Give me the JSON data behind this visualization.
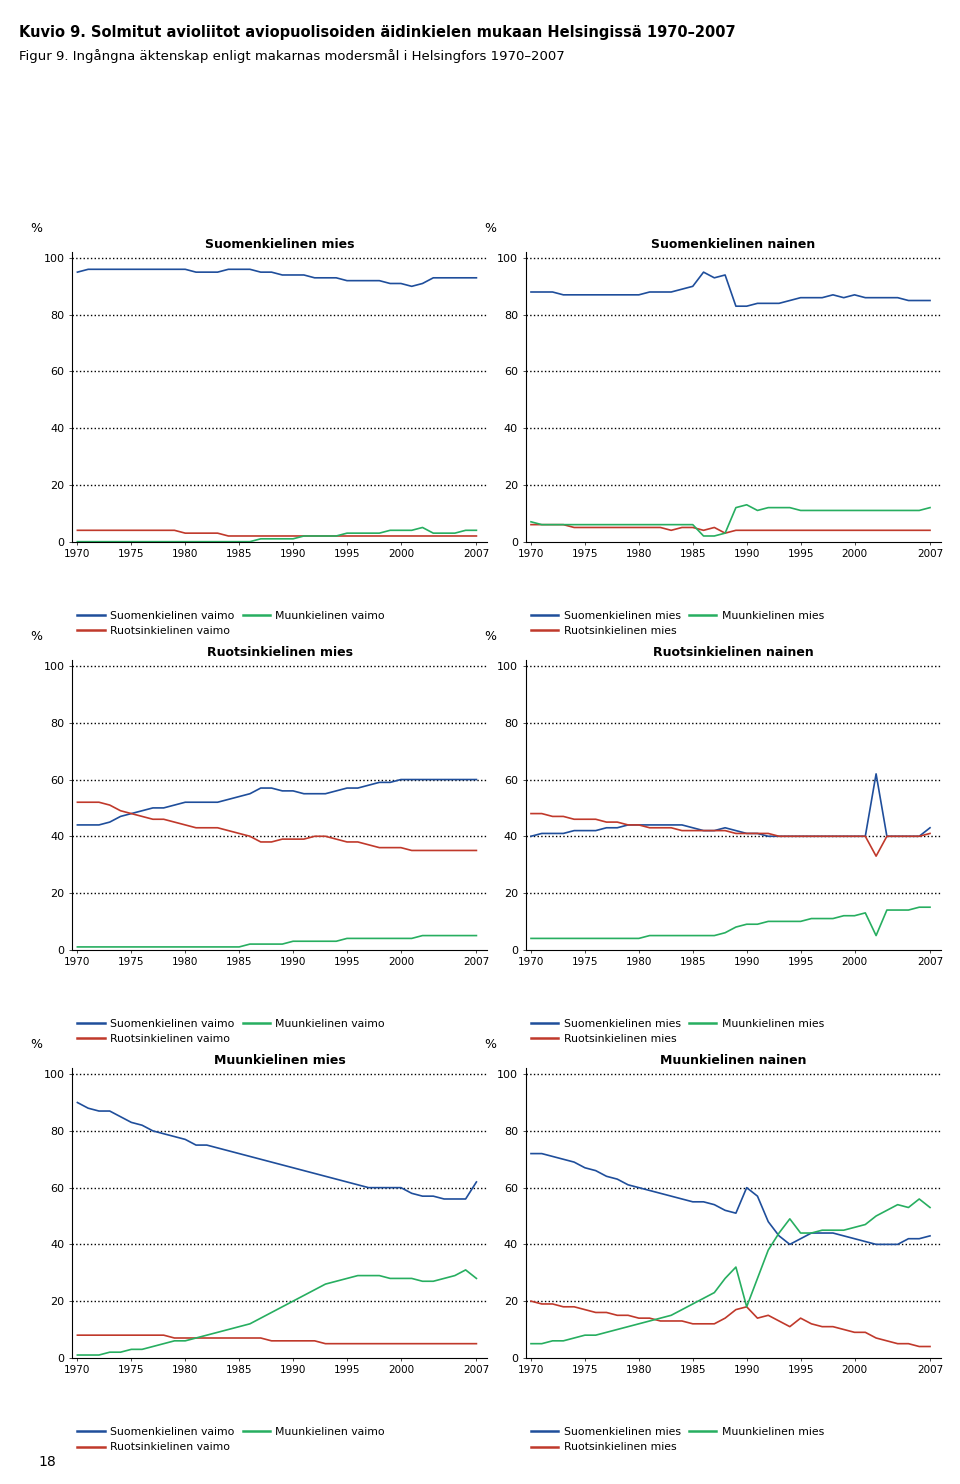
{
  "title_line1": "Kuvio 9. Solmitut avioliitot aviopuolisoiden äidinkielen mukaan Helsingissä 1970–2007",
  "title_line2": "Figur 9. Ingångna äktenskap enligt makarnas modersmål i Helsingfors 1970–2007",
  "years": [
    1970,
    1971,
    1972,
    1973,
    1974,
    1975,
    1976,
    1977,
    1978,
    1979,
    1980,
    1981,
    1982,
    1983,
    1984,
    1985,
    1986,
    1987,
    1988,
    1989,
    1990,
    1991,
    1992,
    1993,
    1994,
    1995,
    1996,
    1997,
    1998,
    1999,
    2000,
    2001,
    2002,
    2003,
    2004,
    2005,
    2006,
    2007
  ],
  "subplot_titles": [
    "Suomenkielinen mies",
    "Suomenkielinen nainen",
    "Ruotsinkielinen mies",
    "Ruotsinkielinen nainen",
    "Muunkielinen mies",
    "Muunkielinen nainen"
  ],
  "colors": {
    "blue": "#1f4e9b",
    "red": "#c0392b",
    "green": "#27ae60"
  },
  "left_legend_labels": [
    "Suomenkielinen vaimo",
    "Ruotsinkielinen vaimo",
    "Muunkielinen vaimo"
  ],
  "right_legend_labels": [
    "Suomenkielinen mies",
    "Ruotsinkielinen mies",
    "Muunkielinen mies"
  ],
  "data": {
    "suomenkielinen_mies": {
      "blue": [
        95,
        96,
        96,
        96,
        96,
        96,
        96,
        96,
        96,
        96,
        96,
        95,
        95,
        95,
        96,
        96,
        96,
        95,
        95,
        94,
        94,
        94,
        93,
        93,
        93,
        92,
        92,
        92,
        92,
        91,
        91,
        90,
        91,
        93,
        93,
        93,
        93,
        93
      ],
      "red": [
        4,
        4,
        4,
        4,
        4,
        4,
        4,
        4,
        4,
        4,
        3,
        3,
        3,
        3,
        2,
        2,
        2,
        2,
        2,
        2,
        2,
        2,
        2,
        2,
        2,
        2,
        2,
        2,
        2,
        2,
        2,
        2,
        2,
        2,
        2,
        2,
        2,
        2
      ],
      "green": [
        0,
        0,
        0,
        0,
        0,
        0,
        0,
        0,
        0,
        0,
        0,
        0,
        0,
        0,
        0,
        0,
        0,
        1,
        1,
        1,
        1,
        2,
        2,
        2,
        2,
        3,
        3,
        3,
        3,
        4,
        4,
        4,
        5,
        3,
        3,
        3,
        4,
        4
      ]
    },
    "suomenkielinen_nainen": {
      "blue": [
        88,
        88,
        88,
        87,
        87,
        87,
        87,
        87,
        87,
        87,
        87,
        88,
        88,
        88,
        89,
        90,
        95,
        93,
        94,
        83,
        83,
        84,
        84,
        84,
        85,
        86,
        86,
        86,
        87,
        86,
        87,
        86,
        86,
        86,
        86,
        85,
        85,
        85
      ],
      "red": [
        6,
        6,
        6,
        6,
        5,
        5,
        5,
        5,
        5,
        5,
        5,
        5,
        5,
        4,
        5,
        5,
        4,
        5,
        3,
        4,
        4,
        4,
        4,
        4,
        4,
        4,
        4,
        4,
        4,
        4,
        4,
        4,
        4,
        4,
        4,
        4,
        4,
        4
      ],
      "green": [
        7,
        6,
        6,
        6,
        6,
        6,
        6,
        6,
        6,
        6,
        6,
        6,
        6,
        6,
        6,
        6,
        2,
        2,
        3,
        12,
        13,
        11,
        12,
        12,
        12,
        11,
        11,
        11,
        11,
        11,
        11,
        11,
        11,
        11,
        11,
        11,
        11,
        12
      ]
    },
    "ruotsinkielinen_mies": {
      "blue": [
        44,
        44,
        44,
        45,
        47,
        48,
        49,
        50,
        50,
        51,
        52,
        52,
        52,
        52,
        53,
        54,
        55,
        57,
        57,
        56,
        56,
        55,
        55,
        55,
        56,
        57,
        57,
        58,
        59,
        59,
        60,
        60,
        60,
        60,
        60,
        60,
        60,
        60
      ],
      "red": [
        52,
        52,
        52,
        51,
        49,
        48,
        47,
        46,
        46,
        45,
        44,
        43,
        43,
        43,
        42,
        41,
        40,
        38,
        38,
        39,
        39,
        39,
        40,
        40,
        39,
        38,
        38,
        37,
        36,
        36,
        36,
        35,
        35,
        35,
        35,
        35,
        35,
        35
      ],
      "green": [
        1,
        1,
        1,
        1,
        1,
        1,
        1,
        1,
        1,
        1,
        1,
        1,
        1,
        1,
        1,
        1,
        2,
        2,
        2,
        2,
        3,
        3,
        3,
        3,
        3,
        4,
        4,
        4,
        4,
        4,
        4,
        4,
        5,
        5,
        5,
        5,
        5,
        5
      ]
    },
    "ruotsinkielinen_nainen": {
      "blue": [
        40,
        41,
        41,
        41,
        42,
        42,
        42,
        43,
        43,
        44,
        44,
        44,
        44,
        44,
        44,
        43,
        42,
        42,
        43,
        42,
        41,
        41,
        40,
        40,
        40,
        40,
        40,
        40,
        40,
        40,
        40,
        40,
        62,
        40,
        40,
        40,
        40,
        43
      ],
      "red": [
        48,
        48,
        47,
        47,
        46,
        46,
        46,
        45,
        45,
        44,
        44,
        43,
        43,
        43,
        42,
        42,
        42,
        42,
        42,
        41,
        41,
        41,
        41,
        40,
        40,
        40,
        40,
        40,
        40,
        40,
        40,
        40,
        33,
        40,
        40,
        40,
        40,
        41
      ],
      "green": [
        4,
        4,
        4,
        4,
        4,
        4,
        4,
        4,
        4,
        4,
        4,
        5,
        5,
        5,
        5,
        5,
        5,
        5,
        6,
        8,
        9,
        9,
        10,
        10,
        10,
        10,
        11,
        11,
        11,
        12,
        12,
        13,
        5,
        14,
        14,
        14,
        15,
        15
      ]
    },
    "muunkielinen_mies": {
      "blue": [
        90,
        88,
        87,
        87,
        85,
        83,
        82,
        80,
        79,
        78,
        77,
        75,
        75,
        74,
        73,
        72,
        71,
        70,
        69,
        68,
        67,
        66,
        65,
        64,
        63,
        62,
        61,
        60,
        60,
        60,
        60,
        58,
        57,
        57,
        56,
        56,
        56,
        62
      ],
      "red": [
        8,
        8,
        8,
        8,
        8,
        8,
        8,
        8,
        8,
        7,
        7,
        7,
        7,
        7,
        7,
        7,
        7,
        7,
        6,
        6,
        6,
        6,
        6,
        5,
        5,
        5,
        5,
        5,
        5,
        5,
        5,
        5,
        5,
        5,
        5,
        5,
        5,
        5
      ],
      "green": [
        1,
        1,
        1,
        2,
        2,
        3,
        3,
        4,
        5,
        6,
        6,
        7,
        8,
        9,
        10,
        11,
        12,
        14,
        16,
        18,
        20,
        22,
        24,
        26,
        27,
        28,
        29,
        29,
        29,
        28,
        28,
        28,
        27,
        27,
        28,
        29,
        31,
        28
      ]
    },
    "muunkielinen_nainen": {
      "blue": [
        72,
        72,
        71,
        70,
        69,
        67,
        66,
        64,
        63,
        61,
        60,
        59,
        58,
        57,
        56,
        55,
        55,
        54,
        52,
        51,
        60,
        57,
        48,
        43,
        40,
        42,
        44,
        44,
        44,
        43,
        42,
        41,
        40,
        40,
        40,
        42,
        42,
        43
      ],
      "red": [
        20,
        19,
        19,
        18,
        18,
        17,
        16,
        16,
        15,
        15,
        14,
        14,
        13,
        13,
        13,
        12,
        12,
        12,
        14,
        17,
        18,
        14,
        15,
        13,
        11,
        14,
        12,
        11,
        11,
        10,
        9,
        9,
        7,
        6,
        5,
        5,
        4,
        4
      ],
      "green": [
        5,
        5,
        6,
        6,
        7,
        8,
        8,
        9,
        10,
        11,
        12,
        13,
        14,
        15,
        17,
        19,
        21,
        23,
        28,
        32,
        18,
        28,
        38,
        44,
        49,
        44,
        44,
        45,
        45,
        45,
        46,
        47,
        50,
        52,
        54,
        53,
        56,
        53
      ]
    }
  },
  "xticks": [
    1970,
    1975,
    1980,
    1985,
    1990,
    1995,
    2000,
    2007
  ],
  "yticks": [
    0,
    20,
    40,
    60,
    80,
    100
  ],
  "ylim": [
    0,
    102
  ],
  "page_number": "18",
  "top_bar_color": "#e8a0a0"
}
